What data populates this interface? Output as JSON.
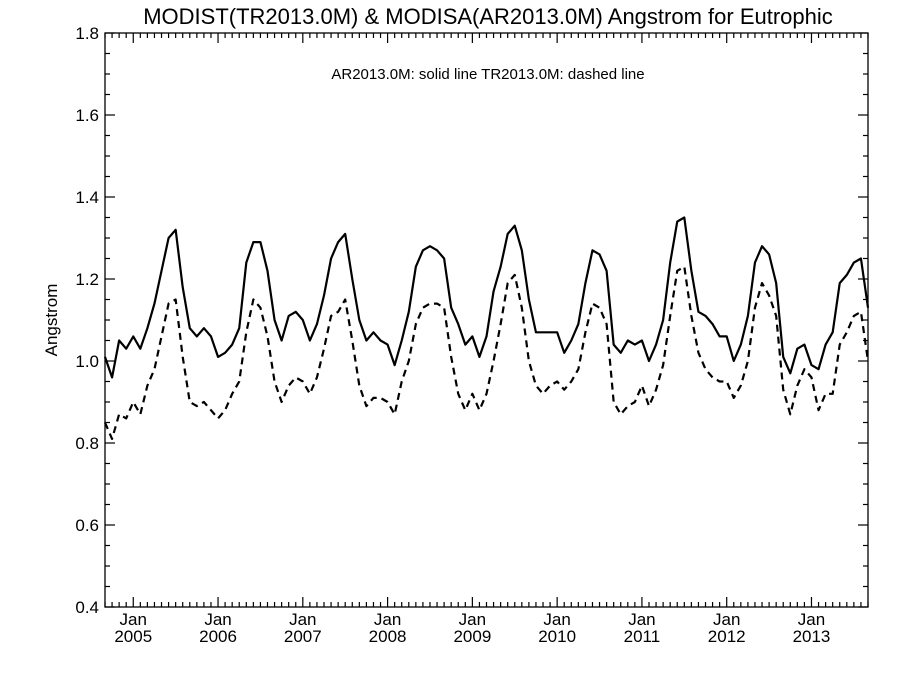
{
  "chart_data": {
    "type": "line",
    "title": "MODIST(TR2013.0M) & MODISA(AR2013.0M)  Angstrom for Eutrophic",
    "annotation": "AR2013.0M: solid line   TR2013.0M: dashed line",
    "xlabel": "",
    "ylabel": "Angstrom",
    "xlim": [
      "2004-09",
      "2013-09"
    ],
    "ylim": [
      0.4,
      1.8
    ],
    "yticks": [
      "0.4",
      "0.6",
      "0.8",
      "1.0",
      "1.2",
      "1.4",
      "1.6",
      "1.8"
    ],
    "xticks": [
      {
        "month": "Jan",
        "year": "2005"
      },
      {
        "month": "Jan",
        "year": "2006"
      },
      {
        "month": "Jan",
        "year": "2007"
      },
      {
        "month": "Jan",
        "year": "2008"
      },
      {
        "month": "Jan",
        "year": "2009"
      },
      {
        "month": "Jan",
        "year": "2010"
      },
      {
        "month": "Jan",
        "year": "2011"
      },
      {
        "month": "Jan",
        "year": "2012"
      },
      {
        "month": "Jan",
        "year": "2013"
      }
    ],
    "x": [
      "2004-09",
      "2004-10",
      "2004-11",
      "2004-12",
      "2005-01",
      "2005-02",
      "2005-03",
      "2005-04",
      "2005-05",
      "2005-06",
      "2005-07",
      "2005-08",
      "2005-09",
      "2005-10",
      "2005-11",
      "2005-12",
      "2006-01",
      "2006-02",
      "2006-03",
      "2006-04",
      "2006-05",
      "2006-06",
      "2006-07",
      "2006-08",
      "2006-09",
      "2006-10",
      "2006-11",
      "2006-12",
      "2007-01",
      "2007-02",
      "2007-03",
      "2007-04",
      "2007-05",
      "2007-06",
      "2007-07",
      "2007-08",
      "2007-09",
      "2007-10",
      "2007-11",
      "2007-12",
      "2008-01",
      "2008-02",
      "2008-03",
      "2008-04",
      "2008-05",
      "2008-06",
      "2008-07",
      "2008-08",
      "2008-09",
      "2008-10",
      "2008-11",
      "2008-12",
      "2009-01",
      "2009-02",
      "2009-03",
      "2009-04",
      "2009-05",
      "2009-06",
      "2009-07",
      "2009-08",
      "2009-09",
      "2009-10",
      "2009-11",
      "2009-12",
      "2010-01",
      "2010-02",
      "2010-03",
      "2010-04",
      "2010-05",
      "2010-06",
      "2010-07",
      "2010-08",
      "2010-09",
      "2010-10",
      "2010-11",
      "2010-12",
      "2011-01",
      "2011-02",
      "2011-03",
      "2011-04",
      "2011-05",
      "2011-06",
      "2011-07",
      "2011-08",
      "2011-09",
      "2011-10",
      "2011-11",
      "2011-12",
      "2012-01",
      "2012-02",
      "2012-03",
      "2012-04",
      "2012-05",
      "2012-06",
      "2012-07",
      "2012-08",
      "2012-09",
      "2012-10",
      "2012-11",
      "2012-12",
      "2013-01",
      "2013-02",
      "2013-03",
      "2013-04",
      "2013-05",
      "2013-06",
      "2013-07",
      "2013-08",
      "2013-09"
    ],
    "series": [
      {
        "name": "AR2013.0M",
        "style": "solid",
        "values": [
          1.01,
          0.96,
          1.05,
          1.03,
          1.06,
          1.03,
          1.08,
          1.14,
          1.22,
          1.3,
          1.32,
          1.18,
          1.08,
          1.06,
          1.08,
          1.06,
          1.01,
          1.02,
          1.04,
          1.08,
          1.24,
          1.29,
          1.29,
          1.22,
          1.1,
          1.05,
          1.11,
          1.12,
          1.1,
          1.05,
          1.09,
          1.16,
          1.25,
          1.29,
          1.31,
          1.2,
          1.1,
          1.05,
          1.07,
          1.05,
          1.04,
          0.99,
          1.05,
          1.12,
          1.23,
          1.27,
          1.28,
          1.27,
          1.25,
          1.13,
          1.09,
          1.04,
          1.06,
          1.01,
          1.06,
          1.17,
          1.23,
          1.31,
          1.33,
          1.27,
          1.15,
          1.07,
          1.07,
          1.07,
          1.07,
          1.02,
          1.05,
          1.09,
          1.19,
          1.27,
          1.26,
          1.22,
          1.04,
          1.02,
          1.05,
          1.04,
          1.05,
          1.0,
          1.04,
          1.1,
          1.24,
          1.34,
          1.35,
          1.22,
          1.12,
          1.11,
          1.09,
          1.06,
          1.06,
          1.0,
          1.04,
          1.11,
          1.24,
          1.28,
          1.26,
          1.19,
          1.01,
          0.97,
          1.03,
          1.04,
          0.99,
          0.98,
          1.04,
          1.07,
          1.19,
          1.21,
          1.24,
          1.25,
          1.13
        ]
      },
      {
        "name": "TR2013.0M",
        "style": "dashed",
        "values": [
          0.85,
          0.81,
          0.87,
          0.86,
          0.9,
          0.87,
          0.94,
          0.98,
          1.06,
          1.14,
          1.15,
          1.01,
          0.9,
          0.89,
          0.9,
          0.88,
          0.86,
          0.88,
          0.92,
          0.95,
          1.07,
          1.15,
          1.13,
          1.06,
          0.95,
          0.9,
          0.94,
          0.96,
          0.95,
          0.92,
          0.96,
          1.03,
          1.11,
          1.12,
          1.15,
          1.05,
          0.94,
          0.89,
          0.91,
          0.91,
          0.9,
          0.87,
          0.95,
          1.0,
          1.09,
          1.13,
          1.14,
          1.14,
          1.13,
          1.01,
          0.92,
          0.88,
          0.92,
          0.88,
          0.92,
          1.0,
          1.09,
          1.19,
          1.21,
          1.13,
          1.0,
          0.94,
          0.92,
          0.94,
          0.95,
          0.93,
          0.95,
          0.98,
          1.07,
          1.14,
          1.13,
          1.09,
          0.9,
          0.87,
          0.89,
          0.9,
          0.94,
          0.89,
          0.93,
          0.99,
          1.11,
          1.22,
          1.23,
          1.11,
          1.02,
          0.98,
          0.96,
          0.95,
          0.95,
          0.91,
          0.94,
          1.0,
          1.13,
          1.19,
          1.16,
          1.11,
          0.93,
          0.87,
          0.94,
          0.98,
          0.96,
          0.88,
          0.92,
          0.92,
          1.04,
          1.07,
          1.11,
          1.12,
          1.0
        ]
      }
    ]
  }
}
